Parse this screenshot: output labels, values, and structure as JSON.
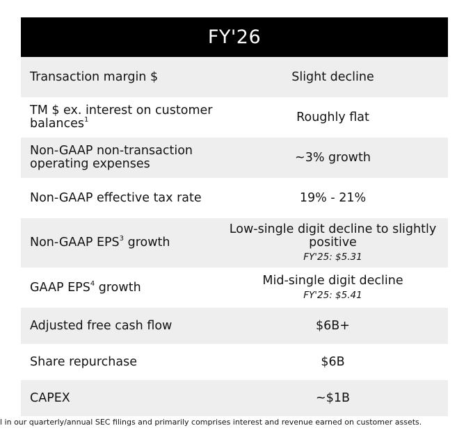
{
  "table": {
    "header": "FY'26",
    "rows": [
      {
        "metric": "Transaction margin $",
        "metric_sup": "",
        "metric_suffix": "",
        "value": "Slight decline",
        "note": ""
      },
      {
        "metric": "TM $ ex. interest on customer balances",
        "metric_sup": "1",
        "metric_suffix": "",
        "value": "Roughly flat",
        "note": ""
      },
      {
        "metric": "Non-GAAP non-transaction operating expenses",
        "metric_sup": "",
        "metric_suffix": "",
        "value": "~3% growth",
        "note": ""
      },
      {
        "metric": "Non-GAAP effective tax rate",
        "metric_sup": "",
        "metric_suffix": "",
        "value": "19% - 21%",
        "note": ""
      },
      {
        "metric": "Non-GAAP EPS",
        "metric_sup": "3",
        "metric_suffix": " growth",
        "value": "Low-single digit decline to slightly positive",
        "note": "FY'25: $5.31"
      },
      {
        "metric": "GAAP EPS",
        "metric_sup": "4",
        "metric_suffix": " growth",
        "value": "Mid-single digit decline",
        "note": "FY'25: $5.41"
      },
      {
        "metric": "Adjusted free cash flow",
        "metric_sup": "",
        "metric_suffix": "",
        "value": "$6B+",
        "note": ""
      },
      {
        "metric": "Share repurchase",
        "metric_sup": "",
        "metric_suffix": "",
        "value": "$6B",
        "note": ""
      },
      {
        "metric": "CAPEX",
        "metric_sup": "",
        "metric_suffix": "",
        "value": "~$1B",
        "note": ""
      }
    ]
  },
  "footnote": "l in our quarterly/annual SEC filings and primarily comprises interest and revenue earned on customer assets.",
  "colors": {
    "header_bg": "#000000",
    "row_shaded": "#eeeeee",
    "row_plain": "#ffffff"
  }
}
